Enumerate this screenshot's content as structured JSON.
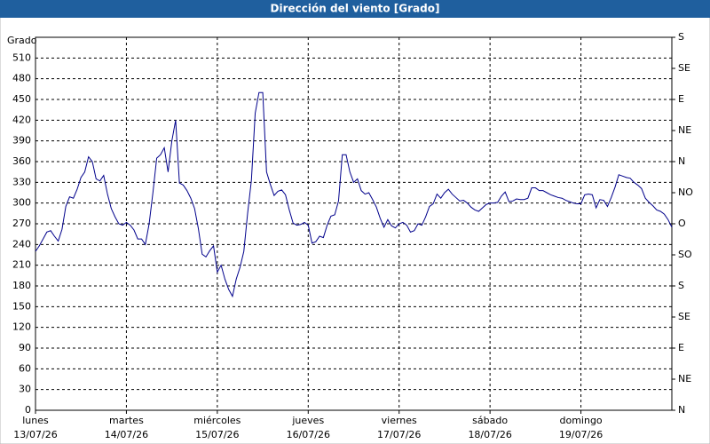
{
  "chart_data": {
    "type": "line",
    "title": "Dirección del viento [Grado]",
    "y_label": "Grado",
    "xlim": [
      0,
      168
    ],
    "xticks": [
      {
        "value": 0,
        "label": "lunes",
        "date": "13/07/26"
      },
      {
        "value": 24,
        "label": "martes",
        "date": "14/07/26"
      },
      {
        "value": 48,
        "label": "miércoles",
        "date": "15/07/26"
      },
      {
        "value": 72,
        "label": "jueves",
        "date": "16/07/26"
      },
      {
        "value": 96,
        "label": "viernes",
        "date": "17/07/26"
      },
      {
        "value": 120,
        "label": "sábado",
        "date": "18/07/26"
      },
      {
        "value": 144,
        "label": "domingo",
        "date": "19/07/26"
      }
    ],
    "ylim": [
      0,
      540
    ],
    "yticks": [
      0,
      30,
      60,
      90,
      120,
      150,
      180,
      210,
      240,
      270,
      300,
      330,
      360,
      390,
      420,
      450,
      480,
      510
    ],
    "y2lim": [
      0,
      540
    ],
    "y2ticks": [
      {
        "value": 0,
        "label": "N"
      },
      {
        "value": 45,
        "label": "NE"
      },
      {
        "value": 90,
        "label": "E"
      },
      {
        "value": 135,
        "label": "SE"
      },
      {
        "value": 180,
        "label": "S"
      },
      {
        "value": 225,
        "label": "SO"
      },
      {
        "value": 270,
        "label": "O"
      },
      {
        "value": 315,
        "label": "NO"
      },
      {
        "value": 360,
        "label": "N"
      },
      {
        "value": 405,
        "label": "NE"
      },
      {
        "value": 450,
        "label": "E"
      },
      {
        "value": 495,
        "label": "SE"
      },
      {
        "value": 540,
        "label": "S"
      }
    ],
    "grid": true,
    "x": [
      0,
      1,
      2,
      3,
      4,
      5,
      6,
      7,
      8,
      9,
      10,
      11,
      12,
      13,
      14,
      15,
      16,
      17,
      18,
      19,
      20,
      21,
      22,
      23,
      24,
      25,
      26,
      27,
      28,
      29,
      30,
      31,
      32,
      33,
      34,
      35,
      36,
      37,
      38,
      39,
      40,
      41,
      42,
      43,
      44,
      45,
      46,
      47,
      48,
      49,
      50,
      51,
      52,
      53,
      54,
      55,
      56,
      57,
      58,
      59,
      60,
      61,
      62,
      63,
      64,
      65,
      66,
      67,
      68,
      69,
      70,
      71,
      72,
      73,
      74,
      75,
      76,
      77,
      78,
      79,
      80,
      81,
      82,
      83,
      84,
      85,
      86,
      87,
      88,
      89,
      90,
      91,
      92,
      93,
      94,
      95,
      96,
      97,
      98,
      99,
      100,
      101,
      102,
      103,
      104,
      105,
      106,
      107,
      108,
      109,
      110,
      111,
      112,
      113,
      114,
      115,
      116,
      117,
      118,
      119,
      120,
      121,
      122,
      123,
      124,
      125,
      126,
      127,
      128,
      129,
      130,
      131,
      132,
      133,
      134,
      135,
      136,
      137,
      138,
      139,
      140,
      141,
      142,
      143,
      144,
      145,
      146,
      147,
      148,
      149,
      150,
      151,
      152,
      153,
      154,
      155,
      156,
      157,
      158,
      159,
      160,
      161,
      162,
      163,
      164,
      165,
      166,
      167,
      168
    ],
    "series": [
      {
        "color": "#00008b",
        "values": [
          230,
          238,
          248,
          258,
          260,
          252,
          245,
          262,
          295,
          309,
          307,
          320,
          337,
          345,
          367,
          360,
          335,
          332,
          340,
          313,
          292,
          280,
          270,
          268,
          272,
          268,
          261,
          248,
          248,
          240,
          270,
          315,
          365,
          370,
          380,
          345,
          390,
          420,
          329,
          326,
          318,
          307,
          292,
          263,
          226,
          222,
          231,
          238,
          200,
          210,
          190,
          175,
          165,
          190,
          207,
          230,
          285,
          333,
          430,
          460,
          460,
          345,
          327,
          311,
          317,
          319,
          312,
          290,
          271,
          268,
          269,
          272,
          268,
          242,
          244,
          252,
          250,
          268,
          281,
          283,
          303,
          370,
          370,
          345,
          330,
          335,
          318,
          313,
          315,
          305,
          294,
          278,
          265,
          276,
          267,
          264,
          270,
          272,
          268,
          258,
          260,
          270,
          268,
          280,
          295,
          299,
          313,
          307,
          315,
          320,
          313,
          308,
          303,
          304,
          300,
          294,
          290,
          288,
          293,
          298,
          300,
          300,
          301,
          310,
          316,
          302,
          303,
          306,
          305,
          305,
          307,
          322,
          322,
          318,
          318,
          315,
          312,
          310,
          308,
          307,
          304,
          302,
          300,
          299,
          299,
          312,
          313,
          312,
          293,
          305,
          304,
          295,
          308,
          323,
          341,
          339,
          337,
          336,
          330,
          326,
          321,
          307,
          301,
          296,
          290,
          288,
          284,
          276,
          265
        ]
      }
    ]
  }
}
